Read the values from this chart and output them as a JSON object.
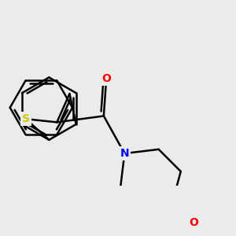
{
  "bg_color": "#ebebeb",
  "bond_color": "#000000",
  "atom_colors": {
    "O": "#ff0000",
    "N": "#0000ff",
    "S": "#cccc00",
    "C": "#000000"
  },
  "bond_width": 1.8,
  "figsize": [
    3.0,
    3.0
  ],
  "dpi": 100
}
